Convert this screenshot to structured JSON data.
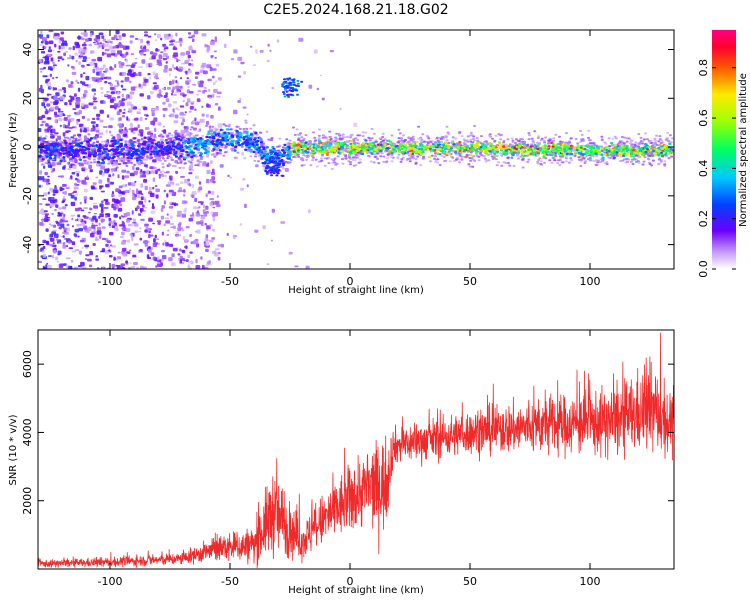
{
  "title": "C2E5.2024.168.21.18.G02",
  "colors": {
    "snr_line": "#ee2a2a",
    "axes": "#000000"
  },
  "chart_data": [
    {
      "type": "heatmap",
      "name": "spectrogram",
      "xlabel": "Height of straight line (km)",
      "ylabel": "Frequency (Hz)",
      "xlim": [
        -130,
        135
      ],
      "ylim": [
        -50,
        48
      ],
      "xticks": [
        -100,
        -50,
        0,
        50,
        100
      ],
      "yticks": [
        -40,
        -20,
        0,
        20,
        40
      ],
      "colormap": "rainbow (white-violet-blue-cyan-green-yellow-red-magenta)",
      "colorbar": {
        "label": "Normalized spectral amplitude",
        "range": [
          0.0,
          0.95
        ],
        "ticks": [
          "0.0",
          "0.2",
          "0.4",
          "0.6",
          "0.8"
        ]
      },
      "ridge": [
        {
          "x": -130,
          "f": -1
        },
        {
          "x": -90,
          "f": -1
        },
        {
          "x": -70,
          "f": 0
        },
        {
          "x": -55,
          "f": 3
        },
        {
          "x": -48,
          "f": 4
        },
        {
          "x": -40,
          "f": 2
        },
        {
          "x": -35,
          "f": -3
        },
        {
          "x": -30,
          "f": -4
        },
        {
          "x": -25,
          "f": 0
        },
        {
          "x": 0,
          "f": 0
        },
        {
          "x": 50,
          "f": 0
        },
        {
          "x": 100,
          "f": -1
        },
        {
          "x": 135,
          "f": -1
        }
      ],
      "features": [
        {
          "x": -25,
          "f": 25,
          "amplitude": 0.3
        },
        {
          "x": -32,
          "f": -8,
          "amplitude": 0.25
        }
      ]
    },
    {
      "type": "line",
      "name": "snr",
      "xlabel": "Height of straight line (km)",
      "ylabel": "SNR (10 * v/v)",
      "xlim": [
        -130,
        135
      ],
      "ylim": [
        0,
        7000
      ],
      "xticks": [
        -100,
        -50,
        0,
        50,
        100
      ],
      "yticks": [
        2000,
        4000,
        6000
      ],
      "envelope": [
        {
          "x": -130,
          "mean": 150,
          "spread": 120
        },
        {
          "x": -100,
          "mean": 200,
          "spread": 150
        },
        {
          "x": -70,
          "mean": 300,
          "spread": 200
        },
        {
          "x": -55,
          "mean": 600,
          "spread": 400
        },
        {
          "x": -40,
          "mean": 700,
          "spread": 600
        },
        {
          "x": -32,
          "mean": 1700,
          "spread": 1400
        },
        {
          "x": -20,
          "mean": 800,
          "spread": 600
        },
        {
          "x": -10,
          "mean": 1500,
          "spread": 900
        },
        {
          "x": 5,
          "mean": 2300,
          "spread": 1200
        },
        {
          "x": 15,
          "mean": 2500,
          "spread": 1500
        },
        {
          "x": 18,
          "mean": 3600,
          "spread": 600
        },
        {
          "x": 50,
          "mean": 4000,
          "spread": 700
        },
        {
          "x": 80,
          "mean": 4200,
          "spread": 900
        },
        {
          "x": 110,
          "mean": 4300,
          "spread": 1100
        },
        {
          "x": 125,
          "mean": 4700,
          "spread": 1400
        },
        {
          "x": 135,
          "mean": 4200,
          "spread": 1000
        }
      ]
    }
  ]
}
